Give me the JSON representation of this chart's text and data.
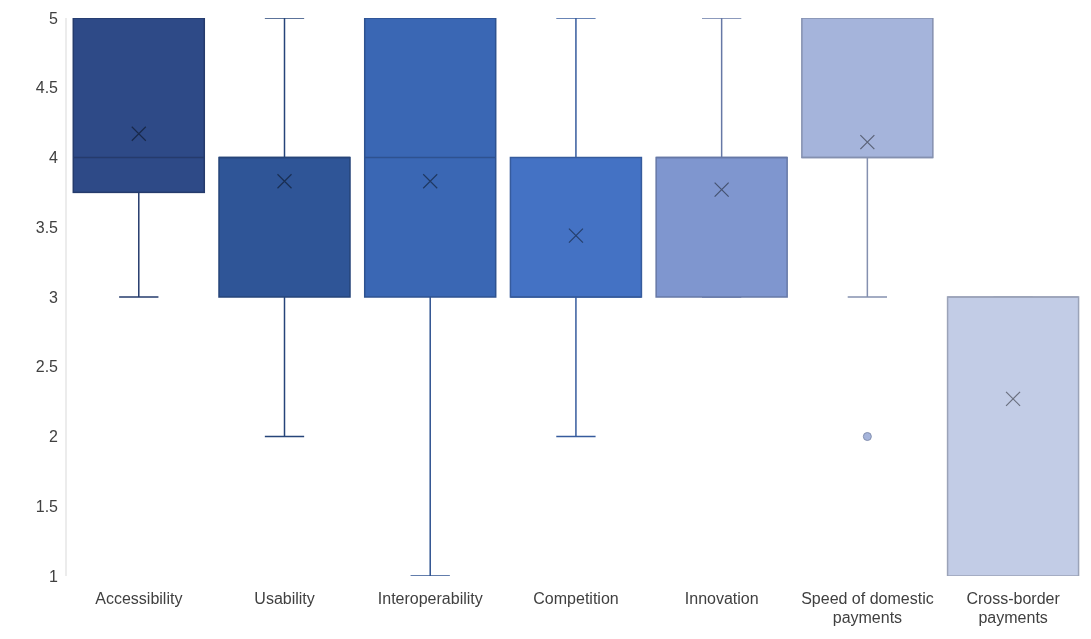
{
  "chart_data": {
    "type": "box",
    "categories": [
      "Accessibility",
      "Usability",
      "Interoperability",
      "Competition",
      "Innovation",
      "Speed of domestic payments",
      "Cross-border payments"
    ],
    "colors": [
      "#2e4a87",
      "#2f5597",
      "#3a67b4",
      "#4472c4",
      "#7f96cf",
      "#a5b4db",
      "#c2cce6"
    ],
    "boxes": [
      {
        "low": 3,
        "q1": 3.75,
        "median": 4,
        "q3": 5,
        "high": 5,
        "mean": 4.17
      },
      {
        "low": 2,
        "q1": 3,
        "median": 4,
        "q3": 4,
        "high": 5,
        "mean": 3.83
      },
      {
        "low": 1,
        "q1": 3,
        "median": 4,
        "q3": 5,
        "high": 5,
        "mean": 3.83
      },
      {
        "low": 2,
        "q1": 3,
        "median": 3,
        "q3": 4,
        "high": 5,
        "mean": 3.44
      },
      {
        "low": 3,
        "q1": 3,
        "median": 4,
        "q3": 4,
        "high": 5,
        "mean": 3.77
      },
      {
        "low": 3,
        "q1": 4,
        "median": 4,
        "q3": 5,
        "high": 5,
        "mean": 4.11,
        "outliers": [
          2
        ]
      },
      {
        "low": 1,
        "q1": 1,
        "median": 3,
        "q3": 3,
        "high": 3,
        "mean": 2.27
      }
    ],
    "ylim": [
      1,
      5
    ],
    "yticks": [
      1,
      1.5,
      2,
      2.5,
      3,
      3.5,
      4,
      4.5,
      5
    ],
    "grid": false
  }
}
